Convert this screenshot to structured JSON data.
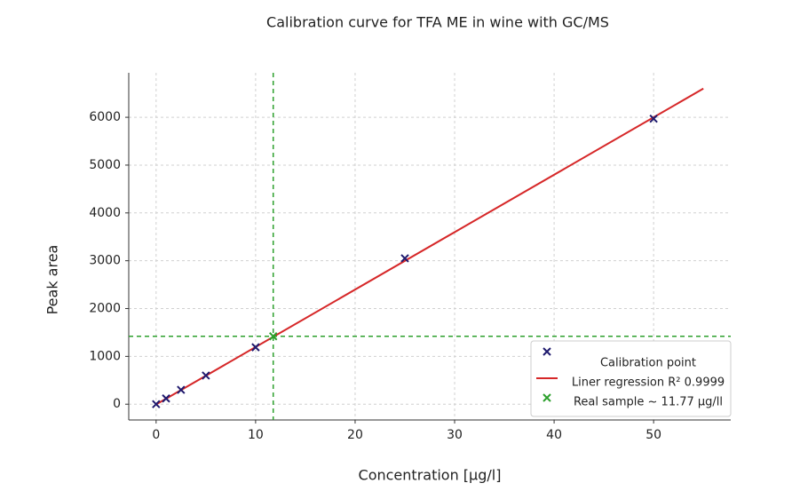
{
  "chart_data": {
    "type": "scatter",
    "title": "Calibration curve for TFA ME in wine with GC/MS",
    "x_label": "Concentration [µg/l]",
    "y_label": "Peak area",
    "xlim": [
      -2.75,
      57.75
    ],
    "xticks": [
      0,
      10,
      20,
      30,
      40,
      50
    ],
    "ylim": [
      -330,
      6930
    ],
    "yticks": [
      0,
      1000,
      2000,
      3000,
      4000,
      5000,
      6000
    ],
    "grid": true,
    "legend": "lower right",
    "series": [
      {
        "name": "Calibration point",
        "type": "scatter",
        "marker": "x",
        "color": "#1f1a6e",
        "x": [
          0,
          1,
          2.5,
          5,
          10,
          25,
          50
        ],
        "values": [
          0,
          120,
          300,
          600,
          1190,
          3050,
          5970
        ]
      },
      {
        "name": "Liner regression R² 0.9999",
        "type": "line",
        "color": "#d62728",
        "x": [
          0,
          55
        ],
        "values": [
          -5,
          6600
        ]
      },
      {
        "name": "Real sample ~ 11.77 µg/ll",
        "type": "scatter",
        "marker": "x",
        "color": "#2ca02c",
        "crosshair": true,
        "x": [
          11.77
        ],
        "values": [
          1420
        ]
      }
    ]
  }
}
